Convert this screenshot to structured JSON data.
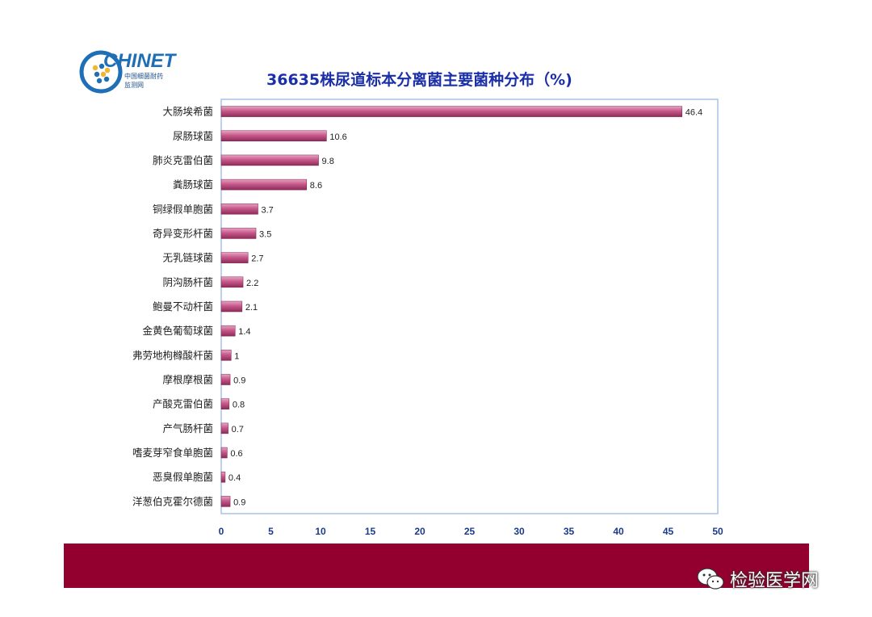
{
  "logo": {
    "brand": "CHINET",
    "line1": "中国细菌耐药",
    "line2": "监测网"
  },
  "watermark": {
    "text": "检验医学网",
    "icon": "wechat-icon"
  },
  "colors": {
    "bar": "#c65a8a",
    "bar_light": "#e9a3c4",
    "title": "#1a2fa8",
    "footer": "#93002f",
    "axis": "#a9c3e8"
  },
  "chart_data": {
    "type": "bar",
    "orientation": "horizontal",
    "title": "36635株尿道标本分离菌主要菌种分布（%)",
    "categories": [
      "大肠埃希菌",
      "尿肠球菌",
      "肺炎克雷伯菌",
      "粪肠球菌",
      "铜绿假单胞菌",
      "奇异变形杆菌",
      "无乳链球菌",
      "阴沟肠杆菌",
      "鲍曼不动杆菌",
      "金黄色葡萄球菌",
      "弗劳地枸橼酸杆菌",
      "摩根摩根菌",
      "产酸克雷伯菌",
      "产气肠杆菌",
      "嗜麦芽窄食单胞菌",
      "恶臭假单胞菌",
      "洋葱伯克霍尔德菌"
    ],
    "values": [
      46.4,
      10.6,
      9.8,
      8.6,
      3.7,
      3.5,
      2.7,
      2.2,
      2.1,
      1.4,
      1,
      0.9,
      0.8,
      0.7,
      0.6,
      0.4,
      0.9
    ],
    "value_labels": [
      "46.4",
      "10.6",
      "9.8",
      "8.6",
      "3.7",
      "3.5",
      "2.7",
      "2.2",
      "2.1",
      "1.4",
      "1",
      "0.9",
      "0.8",
      "0.7",
      "0.6",
      "0.4",
      "0.9"
    ],
    "xlim": [
      0,
      50
    ],
    "xticks": [
      "0",
      "5",
      "10",
      "15",
      "20",
      "25",
      "30",
      "35",
      "40",
      "45",
      "50"
    ],
    "xlabel": "",
    "ylabel": "",
    "grid": false,
    "legend": "none"
  }
}
